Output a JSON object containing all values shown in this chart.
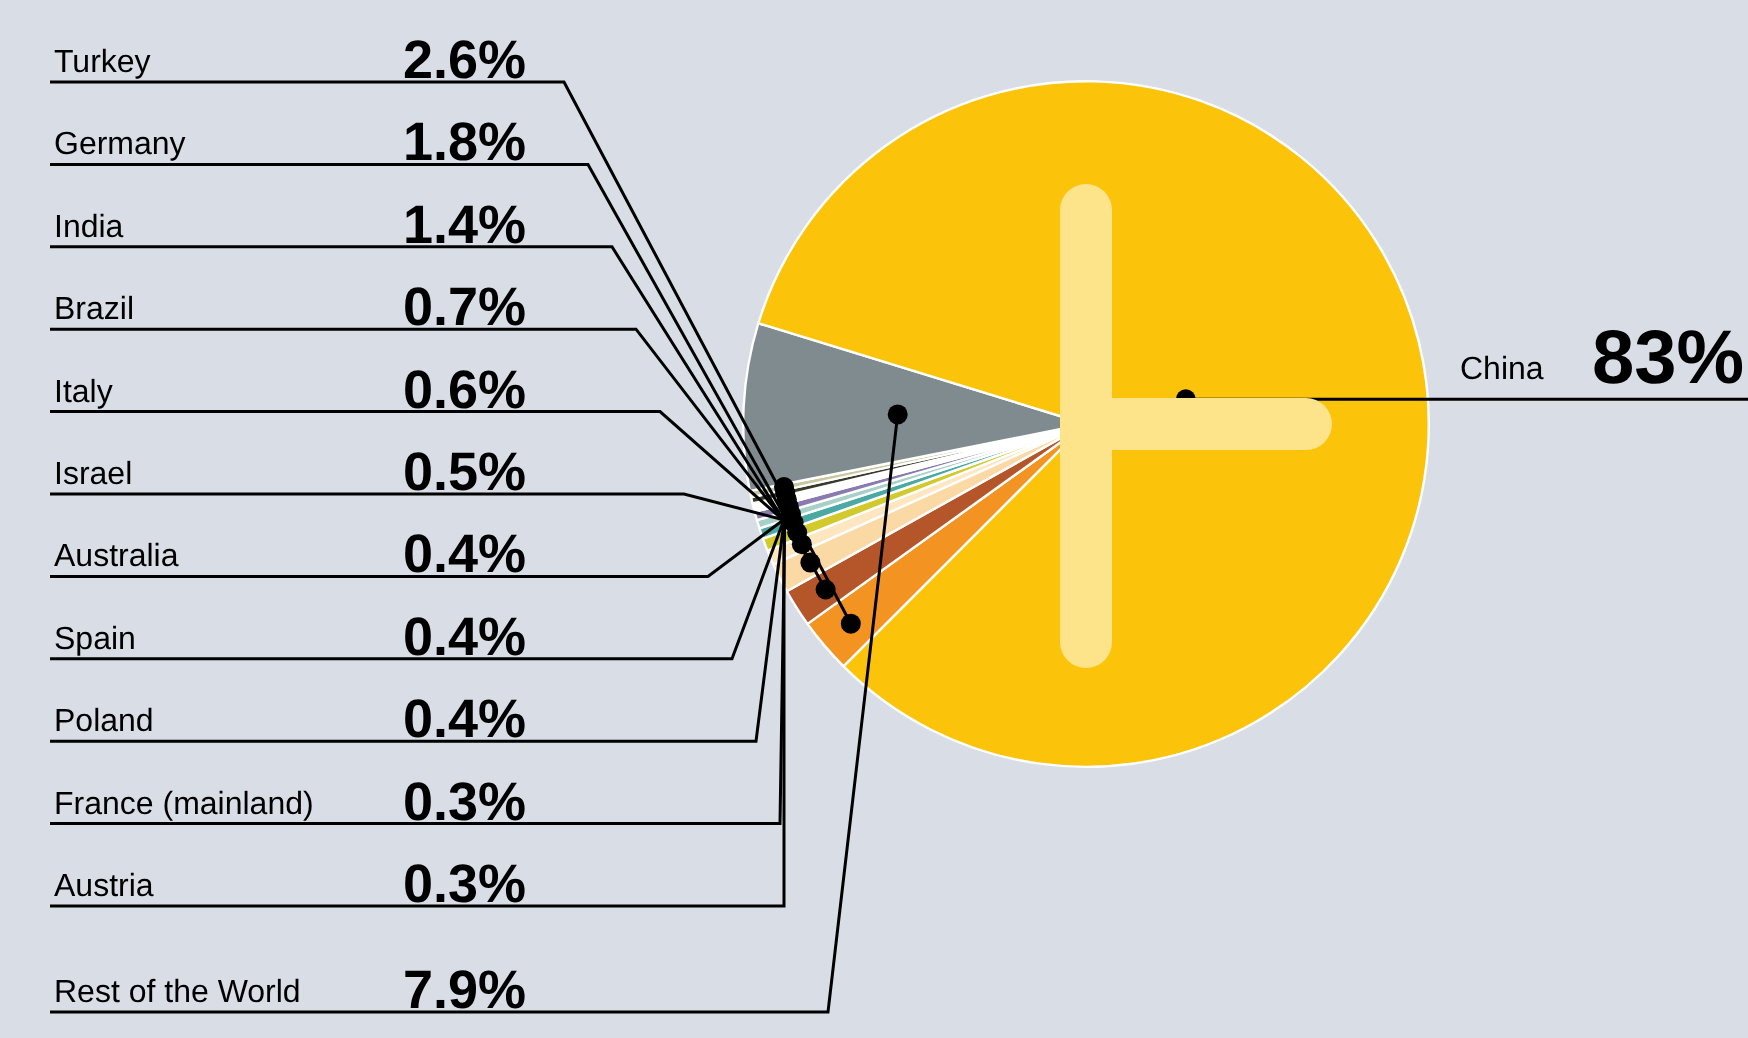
{
  "chart_data": {
    "type": "pie",
    "categories": [
      "Turkey",
      "Germany",
      "India",
      "Brazil",
      "Italy",
      "Israel",
      "Australia",
      "Spain",
      "Poland",
      "France (mainland)",
      "Austria",
      "Rest of the World",
      "China"
    ],
    "values": [
      2.6,
      1.8,
      1.4,
      0.7,
      0.6,
      0.5,
      0.4,
      0.4,
      0.4,
      0.3,
      0.3,
      7.9,
      83
    ],
    "value_labels": [
      "2.6%",
      "1.8%",
      "1.4%",
      "0.7%",
      "0.6%",
      "0.5%",
      "0.4%",
      "0.4%",
      "0.4%",
      "0.3%",
      "0.3%",
      "7.9%",
      "83%"
    ],
    "colors": [
      "#f39322",
      "#b5562a",
      "#fbd9a5",
      "#fde6c0",
      "#d2c92c",
      "#4ba9a4",
      "#a6d0c8",
      "#8a7ab0",
      "#ffffff",
      "#3a3a2a",
      "#c8c8a0",
      "#808b90",
      "#fcc30b"
    ],
    "legend": false
  }
}
